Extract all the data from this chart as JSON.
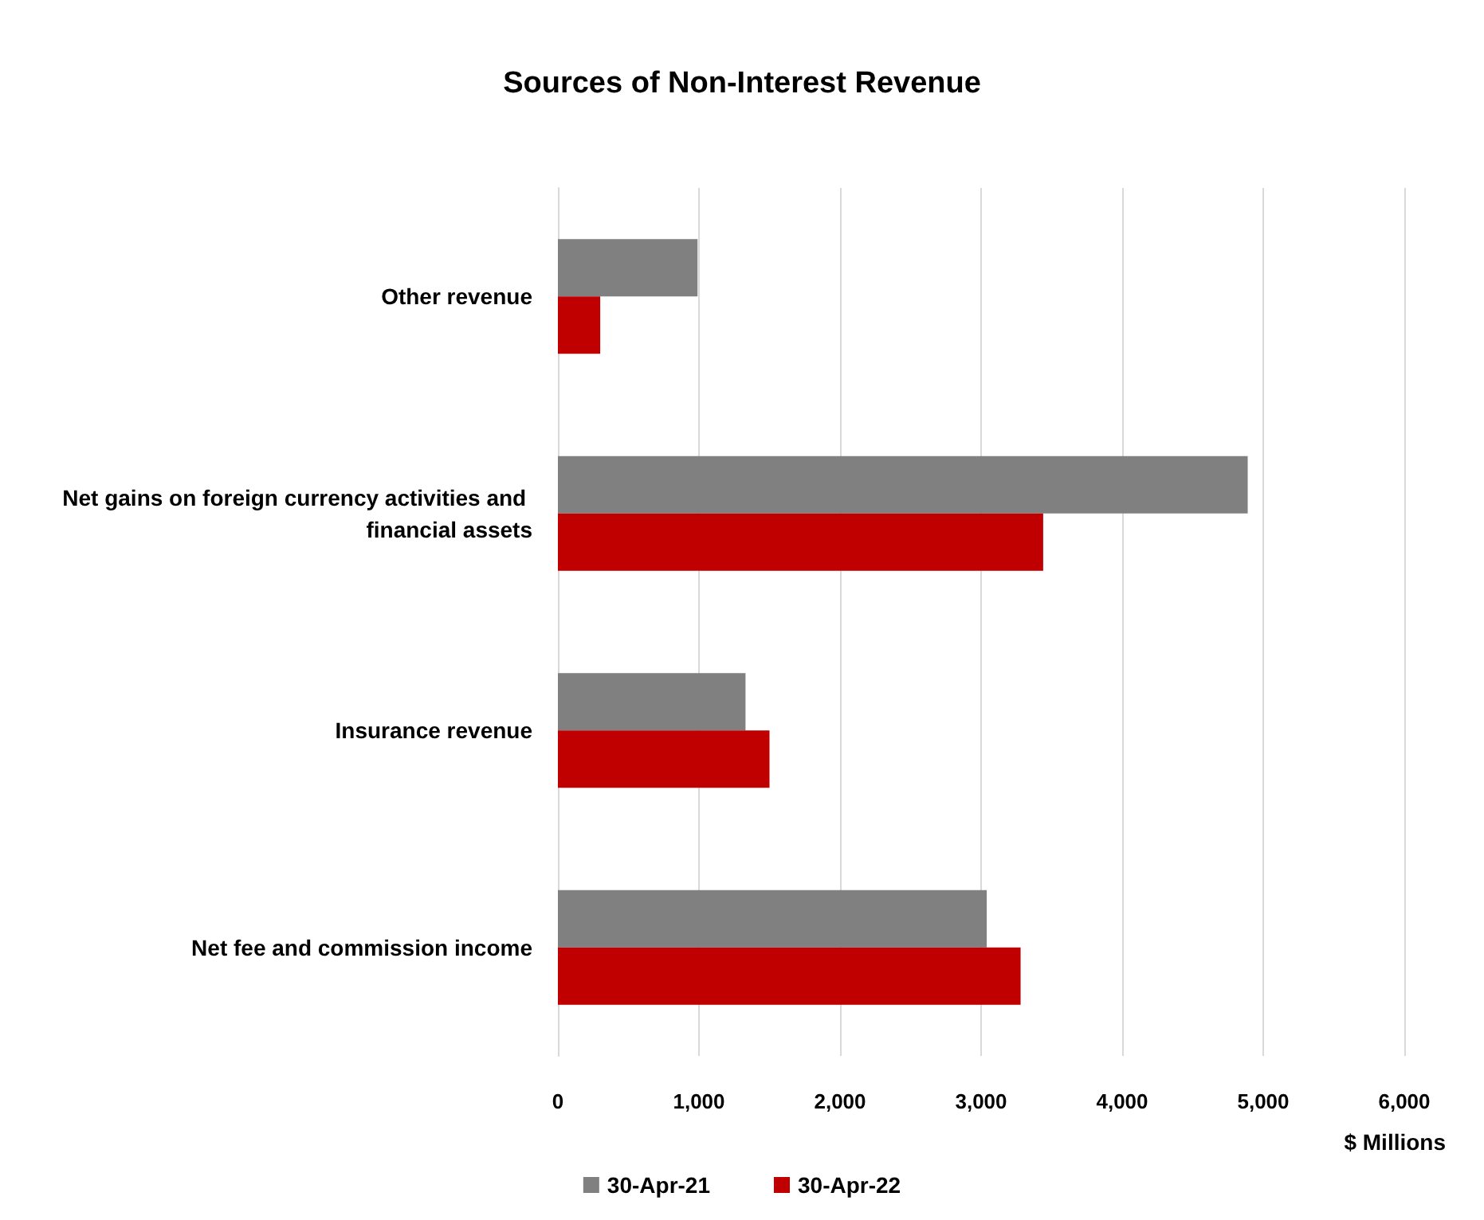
{
  "chart_data": {
    "type": "bar",
    "orientation": "horizontal",
    "title": "Sources of Non-Interest Revenue",
    "xlabel": "$ Millions",
    "categories": [
      "Other revenue",
      "Net gains on foreign currency activities and financial assets",
      "Insurance revenue",
      "Net fee and commission income"
    ],
    "series": [
      {
        "name": "30-Apr-21",
        "color": "#808080",
        "values": [
          990,
          4890,
          1330,
          3040
        ]
      },
      {
        "name": "30-Apr-22",
        "color": "#c00000",
        "values": [
          300,
          3440,
          1500,
          3280
        ]
      }
    ],
    "xlim": [
      0,
      6000
    ],
    "xticks": [
      0,
      {
        "value": 1000,
        "label": "1,000"
      },
      {
        "value": 2000,
        "label": "2,000"
      },
      {
        "value": 3000,
        "label": "3,000"
      },
      {
        "value": 4000,
        "label": "4,000"
      },
      {
        "value": 5000,
        "label": "5,000"
      },
      {
        "value": 6000,
        "label": "6,000"
      }
    ],
    "grid": "x",
    "legend": "bottom"
  }
}
